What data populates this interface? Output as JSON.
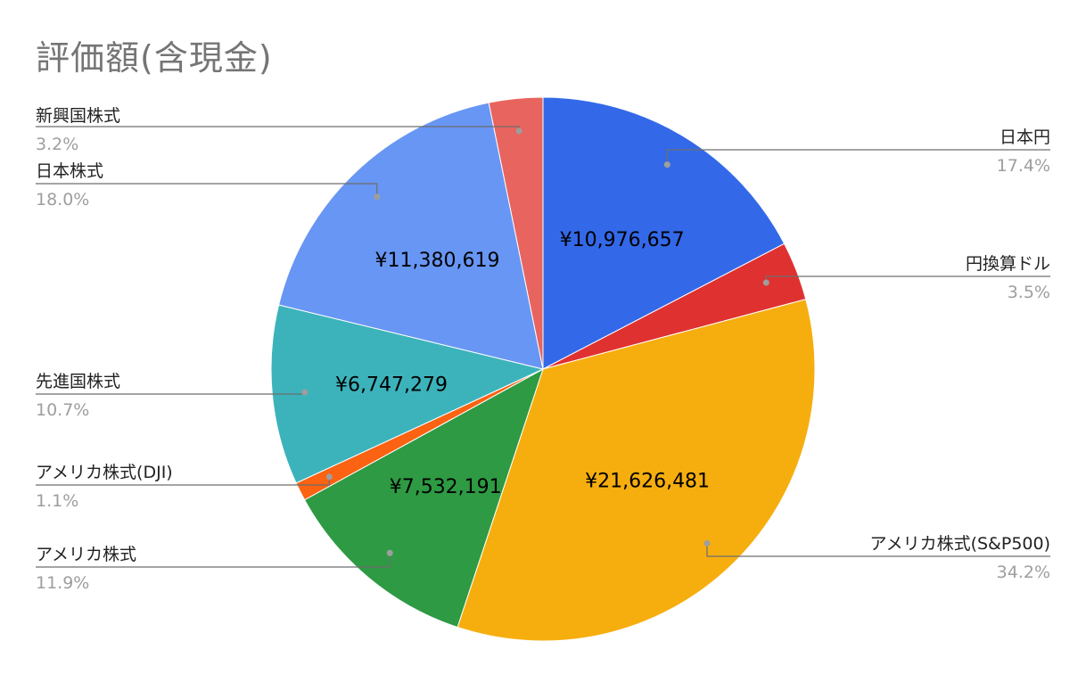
{
  "chart_data": {
    "type": "pie",
    "title": "評価額(含現金)",
    "slices": [
      {
        "name": "日本円",
        "value": 10976657,
        "percent_label": "17.4%",
        "value_label": "¥10,976,657",
        "color": "#3369e8"
      },
      {
        "name": "円換算ドル",
        "value": 2208000,
        "percent_label": "3.5%",
        "value_label": "",
        "color": "#e03131"
      },
      {
        "name": "アメリカ株式(S&P500)",
        "value": 21626481,
        "percent_label": "34.2%",
        "value_label": "¥21,626,481",
        "color": "#f6ae0f"
      },
      {
        "name": "アメリカ株式",
        "value": 7532191,
        "percent_label": "11.9%",
        "value_label": "¥7,532,191",
        "color": "#2e9a43"
      },
      {
        "name": "アメリカ株式(DJI)",
        "value": 696000,
        "percent_label": "1.1%",
        "value_label": "",
        "color": "#fb6212"
      },
      {
        "name": "先進国株式",
        "value": 6747279,
        "percent_label": "10.7%",
        "value_label": "¥6,747,279",
        "color": "#3cb3bb"
      },
      {
        "name": "日本株式",
        "value": 11380619,
        "percent_label": "18.0%",
        "value_label": "¥11,380,619",
        "color": "#6896f4"
      },
      {
        "name": "新興国株式",
        "value": 2020000,
        "percent_label": "3.2%",
        "value_label": "",
        "color": "#e8645e"
      }
    ],
    "legend": "callout-labels"
  }
}
